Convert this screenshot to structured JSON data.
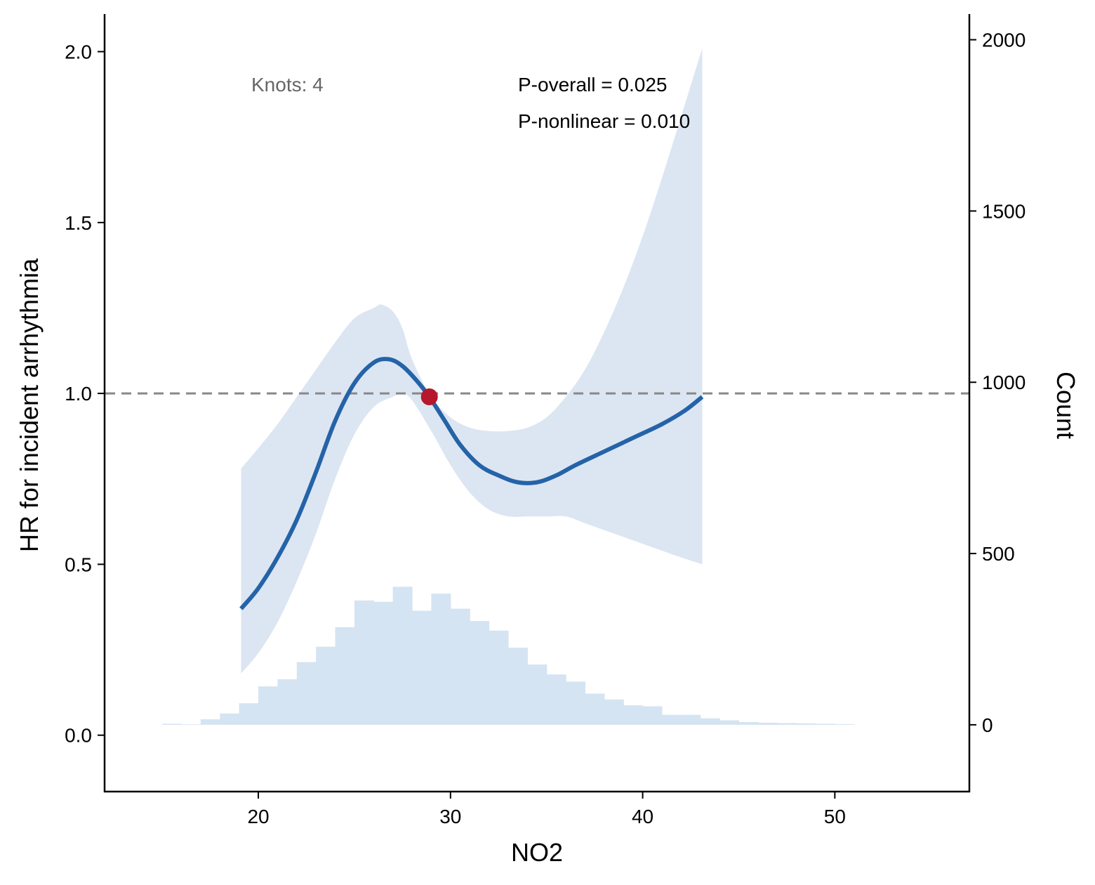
{
  "chart_data": {
    "type": "line",
    "title": "",
    "xlabel": "NO2",
    "ylabel": "HR for incident arrhythmia",
    "ylabel_right": "Count",
    "xlim": [
      12,
      57
    ],
    "ylim": [
      -0.165,
      2.11
    ],
    "ylim_right": [
      -195,
      2075
    ],
    "x_ticks": [
      20,
      30,
      40,
      50
    ],
    "y_ticks": [
      0.0,
      0.5,
      1.0,
      1.5,
      2.0
    ],
    "y_ticks_right": [
      0,
      500,
      1000,
      1500,
      2000
    ],
    "grid": false,
    "reference_line": {
      "y": 1.0,
      "style": "dashed",
      "color": "#888888"
    },
    "annotations": {
      "knots": "Knots: 4",
      "p_overall": "P-overall = 0.025",
      "p_nonlinear": "P-nonlinear = 0.010"
    },
    "colors": {
      "curve": "#2563a8",
      "ci_band": "#dce6f2",
      "histogram": "#d4e4f2",
      "reference_point": "#b5172b",
      "reference_line": "#888888"
    },
    "reference_point": {
      "x": 28.9,
      "y": 0.99
    },
    "series": [
      {
        "role": "estimate",
        "x": [
          19.1,
          20,
          21,
          22,
          23,
          24,
          25,
          26,
          26.8,
          27.5,
          28.2,
          28.9,
          29.7,
          30.5,
          31.5,
          32.5,
          33.5,
          34.5,
          35.5,
          36.5,
          38,
          39.5,
          41,
          42.2,
          43.1
        ],
        "y": [
          0.37,
          0.43,
          0.52,
          0.63,
          0.77,
          0.92,
          1.03,
          1.09,
          1.1,
          1.08,
          1.04,
          0.99,
          0.92,
          0.85,
          0.79,
          0.76,
          0.74,
          0.74,
          0.76,
          0.79,
          0.83,
          0.87,
          0.91,
          0.95,
          0.99
        ]
      },
      {
        "role": "ci_lower",
        "x": [
          19.1,
          20,
          21,
          22,
          23,
          24,
          25,
          26,
          27,
          27.5,
          28,
          29,
          30,
          31,
          32,
          33,
          34,
          35,
          36,
          37,
          38,
          39,
          40,
          41,
          42,
          43.1
        ],
        "y": [
          0.18,
          0.24,
          0.33,
          0.45,
          0.59,
          0.75,
          0.88,
          0.96,
          0.99,
          1.0,
          0.98,
          0.89,
          0.79,
          0.71,
          0.66,
          0.64,
          0.64,
          0.64,
          0.64,
          0.62,
          0.6,
          0.58,
          0.56,
          0.54,
          0.52,
          0.5
        ]
      },
      {
        "role": "ci_upper",
        "x": [
          19.1,
          20,
          21,
          22,
          23,
          24,
          25,
          26,
          26.4,
          27,
          27.5,
          28,
          29,
          30,
          31,
          32,
          33,
          34,
          35,
          36,
          37,
          38,
          39,
          40,
          41,
          42,
          43.1
        ],
        "y": [
          0.78,
          0.84,
          0.91,
          0.99,
          1.07,
          1.15,
          1.22,
          1.25,
          1.26,
          1.24,
          1.19,
          1.1,
          0.99,
          0.93,
          0.9,
          0.89,
          0.89,
          0.9,
          0.93,
          0.99,
          1.07,
          1.18,
          1.31,
          1.46,
          1.63,
          1.81,
          2.01
        ]
      }
    ],
    "histogram": {
      "bin_width": 1,
      "bin_starts": [
        15,
        16,
        17,
        18,
        19,
        20,
        21,
        22,
        23,
        24,
        25,
        26,
        27,
        28,
        29,
        30,
        31,
        32,
        33,
        34,
        35,
        36,
        37,
        38,
        39,
        40,
        41,
        42,
        43,
        44,
        45,
        46,
        47,
        48,
        49,
        50
      ],
      "counts": [
        3,
        1,
        16,
        33,
        63,
        112,
        133,
        183,
        228,
        285,
        363,
        359,
        403,
        333,
        383,
        339,
        303,
        275,
        225,
        176,
        147,
        126,
        91,
        74,
        57,
        54,
        29,
        29,
        19,
        13,
        8,
        6,
        5,
        4,
        3,
        2
      ]
    }
  }
}
